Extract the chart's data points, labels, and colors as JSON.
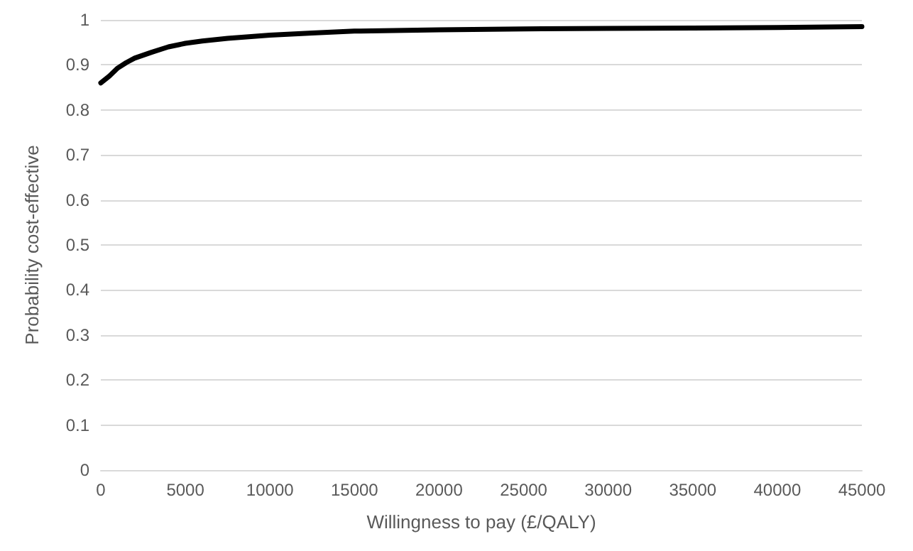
{
  "chart_data": {
    "type": "line",
    "xlabel": "Willingness to pay (£/QALY)",
    "ylabel": "Probability cost-effective",
    "x": [
      0,
      500,
      1000,
      1500,
      2000,
      3000,
      4000,
      5000,
      6000,
      7500,
      10000,
      12500,
      15000,
      20000,
      25000,
      30000,
      35000,
      40000,
      45000
    ],
    "series": [
      {
        "color": "#000000",
        "values": [
          0.86,
          0.875,
          0.893,
          0.905,
          0.915,
          0.928,
          0.94,
          0.948,
          0.953,
          0.959,
          0.966,
          0.971,
          0.975,
          0.978,
          0.98,
          0.981,
          0.982,
          0.983,
          0.985
        ]
      }
    ],
    "xlim": [
      0,
      45000
    ],
    "xticks": [
      0,
      5000,
      10000,
      15000,
      20000,
      25000,
      30000,
      35000,
      40000,
      45000
    ],
    "ylim": [
      0,
      1
    ],
    "yticks": [
      0,
      0.1,
      0.2,
      0.3,
      0.4,
      0.5,
      0.6,
      0.7,
      0.8,
      0.9,
      1
    ],
    "grid": "y",
    "marker": "none",
    "line_style": "solid"
  }
}
